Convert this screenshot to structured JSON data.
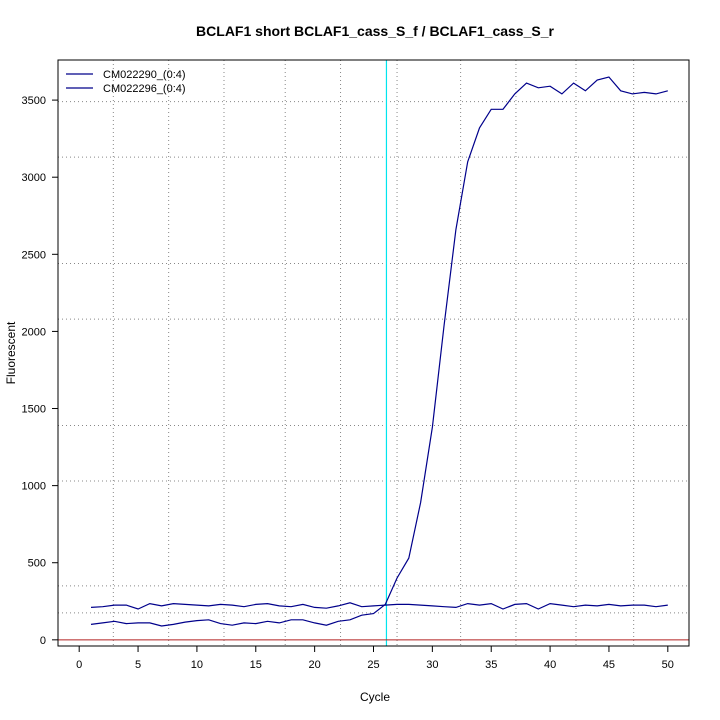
{
  "chart_data": {
    "type": "line",
    "title": "BCLAF1 short BCLAF1_cass_S_f / BCLAF1_cass_S_r",
    "xlabel": "Cycle",
    "ylabel": "Fluorescent",
    "xlim": [
      -1.8,
      51.8
    ],
    "ylim": [
      -40,
      3760
    ],
    "xticks": [
      0,
      5,
      10,
      15,
      20,
      25,
      30,
      35,
      40,
      45,
      50
    ],
    "xtick_labels": [
      "0",
      "5",
      "10",
      "15",
      "20",
      "25",
      "30",
      "35",
      "40",
      "45",
      "50"
    ],
    "yticks": [
      0,
      500,
      1000,
      1500,
      2000,
      2500,
      3000,
      3500
    ],
    "ytick_labels": [
      "0",
      "500",
      "1000",
      "1500",
      "2000",
      "2500",
      "3000",
      "3500"
    ],
    "grid": true,
    "grid_x": [
      2.9,
      7.6,
      12.3,
      17.5,
      22.2,
      27,
      32.4,
      37.1,
      42.2,
      47.1
    ],
    "grid_y": [
      175,
      350,
      1030,
      1390,
      2080,
      2440,
      3130,
      3490
    ],
    "threshold_cycle": 26.1,
    "baseline": 0,
    "legend_position": "top-left",
    "colors": {
      "series": "#00008b",
      "threshold": "#00e5ee",
      "baseline": "#b22222",
      "grid": "#888888"
    },
    "x": [
      1,
      2,
      3,
      4,
      5,
      6,
      7,
      8,
      9,
      10,
      11,
      12,
      13,
      14,
      15,
      16,
      17,
      18,
      19,
      20,
      21,
      22,
      23,
      24,
      25,
      26,
      27,
      28,
      29,
      30,
      31,
      32,
      33,
      34,
      35,
      36,
      37,
      38,
      39,
      40,
      41,
      42,
      43,
      44,
      45,
      46,
      47,
      48,
      49,
      50
    ],
    "series": [
      {
        "name": "CM022290_(0:4)",
        "values": [
          100,
          110,
          120,
          105,
          110,
          110,
          90,
          100,
          115,
          125,
          130,
          105,
          95,
          110,
          105,
          120,
          110,
          130,
          130,
          110,
          95,
          120,
          130,
          160,
          170,
          230,
          400,
          530,
          890,
          1380,
          2040,
          2660,
          3100,
          3320,
          3440,
          3440,
          3540,
          3610,
          3580,
          3590,
          3540,
          3610,
          3560,
          3630,
          3650,
          3560,
          3540,
          3550,
          3540,
          3560
        ]
      },
      {
        "name": "CM022296_(0:4)",
        "values": [
          210,
          215,
          225,
          225,
          200,
          235,
          220,
          235,
          230,
          225,
          220,
          230,
          225,
          215,
          230,
          235,
          220,
          215,
          230,
          210,
          205,
          220,
          240,
          215,
          220,
          225,
          230,
          230,
          225,
          220,
          215,
          210,
          235,
          225,
          235,
          200,
          230,
          235,
          200,
          235,
          225,
          215,
          225,
          220,
          230,
          220,
          225,
          225,
          215,
          225
        ]
      }
    ]
  }
}
